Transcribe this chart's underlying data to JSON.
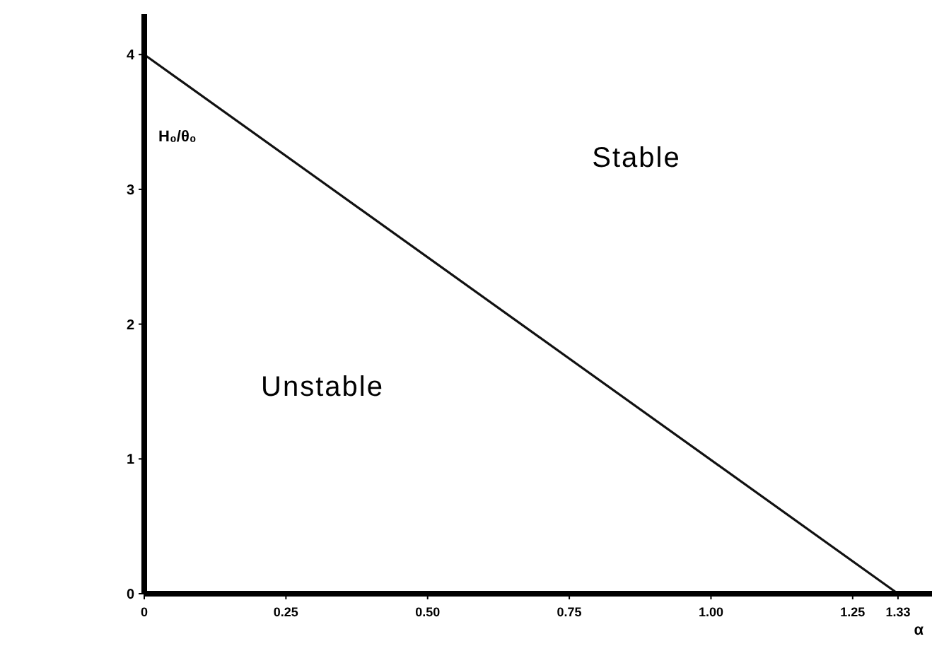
{
  "chart_data": {
    "type": "line",
    "xlabel": "α",
    "ylabel": "H₀/θ₀",
    "x": [
      0,
      1.33
    ],
    "series": [
      {
        "color": "#111111",
        "values": [
          4,
          0
        ]
      }
    ],
    "xlim": [
      0,
      1.39
    ],
    "ylim": [
      0,
      4.3
    ],
    "xticks": [
      0,
      {
        "value": 0.25,
        "label": "0.25"
      },
      {
        "value": 0.5,
        "label": "0.50"
      },
      0.75,
      {
        "value": 1,
        "label": "1.00"
      },
      1.25,
      1.33
    ],
    "yticks": [
      0,
      1,
      2,
      3,
      4
    ],
    "annotations": [
      "Stable",
      "Unstable"
    ],
    "grid": false,
    "marker": "none",
    "line_style": "solid"
  }
}
